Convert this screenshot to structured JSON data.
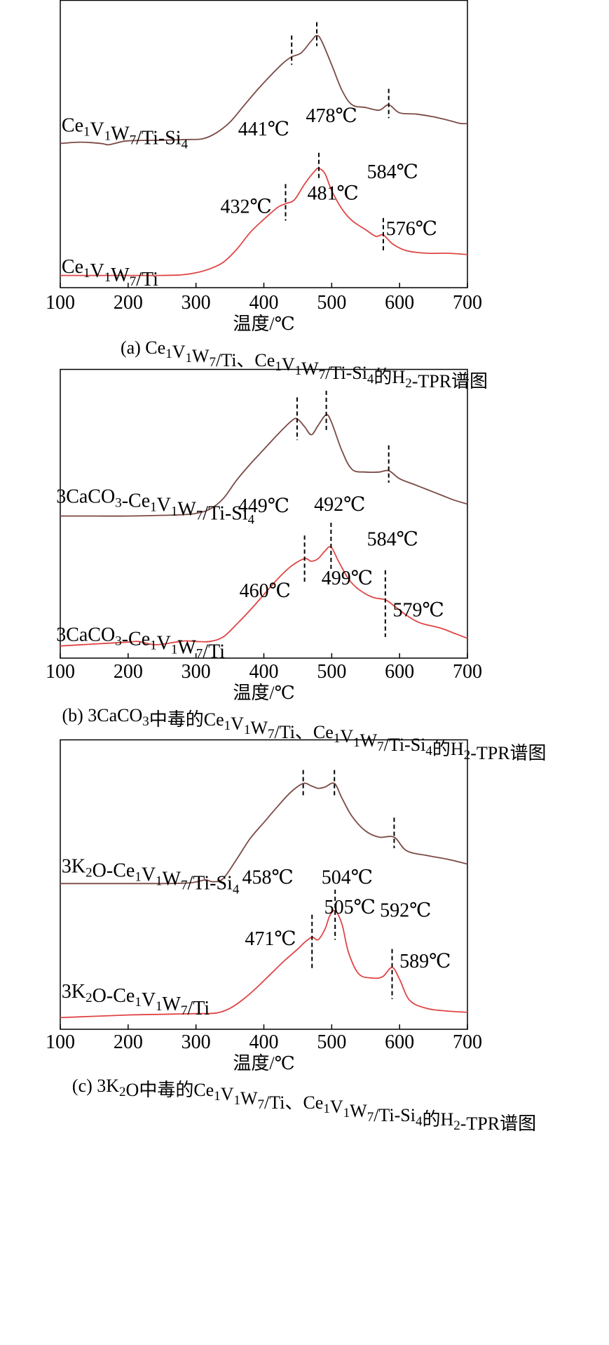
{
  "chart_data": [
    {
      "id": "a",
      "type": "line",
      "caption_parts": [
        {
          "t": "(a) Ce"
        },
        {
          "t": "1",
          "s": 1
        },
        {
          "t": "V"
        },
        {
          "t": "1",
          "s": 1
        },
        {
          "t": "W"
        },
        {
          "t": "7",
          "s": 1
        },
        {
          "t": "/Ti、Ce"
        },
        {
          "t": "1",
          "s": 1
        },
        {
          "t": "V"
        },
        {
          "t": "1",
          "s": 1
        },
        {
          "t": "W"
        },
        {
          "t": "7",
          "s": 1
        },
        {
          "t": "/Ti-Si"
        },
        {
          "t": "4",
          "s": 1
        },
        {
          "t": "的H"
        },
        {
          "t": "2",
          "s": 1
        },
        {
          "t": "-TPR谱图"
        }
      ],
      "xlabel": "温度/℃",
      "xlim": [
        100,
        700
      ],
      "xticks": [
        100,
        200,
        300,
        400,
        500,
        600,
        700
      ],
      "y_ticks_shown": false,
      "series": [
        {
          "label_parts": [
            {
              "t": "Ce"
            },
            {
              "t": "1",
              "s": 1
            },
            {
              "t": "V"
            },
            {
              "t": "1",
              "s": 1
            },
            {
              "t": "W"
            },
            {
              "t": "7",
              "s": 1
            },
            {
              "t": "/Ti-Si"
            },
            {
              "t": "4",
              "s": 1
            }
          ],
          "color": "#7a4a45",
          "x": [
            100,
            130,
            160,
            170,
            180,
            200,
            250,
            290,
            310,
            330,
            350,
            370,
            390,
            410,
            430,
            441,
            455,
            470,
            478,
            485,
            500,
            515,
            530,
            550,
            570,
            584,
            600,
            625,
            650,
            675,
            690,
            700
          ],
          "y": [
            0.05,
            0.06,
            0.05,
            0.04,
            0.05,
            0.07,
            0.075,
            0.08,
            0.085,
            0.13,
            0.21,
            0.33,
            0.45,
            0.56,
            0.66,
            0.7,
            0.73,
            0.82,
            0.86,
            0.82,
            0.64,
            0.45,
            0.34,
            0.32,
            0.3,
            0.34,
            0.28,
            0.27,
            0.25,
            0.22,
            0.2,
            0.2
          ]
        },
        {
          "label_parts": [
            {
              "t": "Ce"
            },
            {
              "t": "1",
              "s": 1
            },
            {
              "t": "V"
            },
            {
              "t": "1",
              "s": 1
            },
            {
              "t": "W"
            },
            {
              "t": "7",
              "s": 1
            },
            {
              "t": "/Ti"
            }
          ],
          "color": "#e04545",
          "x": [
            100,
            150,
            200,
            250,
            280,
            300,
            320,
            340,
            360,
            380,
            400,
            420,
            432,
            445,
            460,
            475,
            481,
            490,
            500,
            515,
            530,
            550,
            565,
            576,
            590,
            610,
            640,
            670,
            700
          ],
          "y": [
            0.04,
            0.04,
            0.04,
            0.04,
            0.045,
            0.06,
            0.09,
            0.14,
            0.24,
            0.37,
            0.47,
            0.56,
            0.59,
            0.62,
            0.74,
            0.84,
            0.86,
            0.82,
            0.69,
            0.55,
            0.46,
            0.39,
            0.34,
            0.35,
            0.28,
            0.23,
            0.21,
            0.21,
            0.2
          ]
        }
      ],
      "markers": [
        {
          "x": 441,
          "upper": 0.86,
          "lower": 0.64,
          "band": 0
        },
        {
          "x": 478,
          "upper": 0.96,
          "lower": 0.78,
          "band": 0
        },
        {
          "x": 584,
          "upper": 0.46,
          "lower": 0.24,
          "band": 0
        },
        {
          "x": 432,
          "upper": 0.74,
          "lower": 0.46,
          "band": 1
        },
        {
          "x": 481,
          "upper": 0.98,
          "lower": 0.78,
          "band": 1
        },
        {
          "x": 576,
          "upper": 0.48,
          "lower": 0.22,
          "band": 1
        }
      ],
      "annotations": [
        {
          "text": "441℃",
          "x": 362,
          "y": 0.11,
          "band": 0
        },
        {
          "text": "478℃",
          "x": 462,
          "y": 0.21,
          "band": 0
        },
        {
          "text": "584℃",
          "x": 552,
          "y": -0.21,
          "band": 0
        },
        {
          "text": "432℃",
          "x": 336,
          "y": 0.52,
          "band": 1
        },
        {
          "text": "481℃",
          "x": 464,
          "y": 0.62,
          "band": 1
        },
        {
          "text": "576℃",
          "x": 580,
          "y": 0.35,
          "band": 1
        }
      ],
      "series_label_pos": [
        {
          "x": 102,
          "y": 0.14,
          "band": 0
        },
        {
          "x": 102,
          "y": 0.06,
          "band": 1
        }
      ]
    },
    {
      "id": "b",
      "type": "line",
      "caption_parts": [
        {
          "t": "(b) 3CaCO"
        },
        {
          "t": "3",
          "s": 1
        },
        {
          "t": "中毒的Ce"
        },
        {
          "t": "1",
          "s": 1
        },
        {
          "t": "V"
        },
        {
          "t": "1",
          "s": 1
        },
        {
          "t": "W"
        },
        {
          "t": "7",
          "s": 1
        },
        {
          "t": "/Ti、Ce"
        },
        {
          "t": "1",
          "s": 1
        },
        {
          "t": "V"
        },
        {
          "t": "1",
          "s": 1
        },
        {
          "t": "W"
        },
        {
          "t": "7",
          "s": 1
        },
        {
          "t": "/Ti-Si"
        },
        {
          "t": "4",
          "s": 1
        },
        {
          "t": "的H"
        },
        {
          "t": "2",
          "s": 1
        },
        {
          "t": "-TPR谱图"
        }
      ],
      "xlabel": "温度/℃",
      "xlim": [
        100,
        700
      ],
      "xticks": [
        100,
        200,
        300,
        400,
        500,
        600,
        700
      ],
      "y_ticks_shown": false,
      "series": [
        {
          "label_parts": [
            {
              "t": "3CaCO"
            },
            {
              "t": "3",
              "s": 1
            },
            {
              "t": "-Ce"
            },
            {
              "t": "1",
              "s": 1
            },
            {
              "t": "V"
            },
            {
              "t": "1",
              "s": 1
            },
            {
              "t": "W"
            },
            {
              "t": "7",
              "s": 1
            },
            {
              "t": "/Ti-Si"
            },
            {
              "t": "4",
              "s": 1
            }
          ],
          "color": "#7a4a45",
          "x": [
            100,
            150,
            200,
            250,
            280,
            300,
            320,
            340,
            360,
            380,
            400,
            420,
            440,
            449,
            460,
            470,
            480,
            492,
            500,
            515,
            530,
            550,
            570,
            584,
            600,
            620,
            640,
            660,
            680,
            700
          ],
          "y": [
            0.05,
            0.05,
            0.05,
            0.055,
            0.06,
            0.07,
            0.1,
            0.18,
            0.32,
            0.44,
            0.55,
            0.66,
            0.76,
            0.78,
            0.72,
            0.66,
            0.73,
            0.81,
            0.75,
            0.54,
            0.4,
            0.38,
            0.38,
            0.39,
            0.33,
            0.29,
            0.25,
            0.21,
            0.17,
            0.14
          ]
        },
        {
          "label_parts": [
            {
              "t": "3CaCO"
            },
            {
              "t": "3",
              "s": 1
            },
            {
              "t": "-Ce"
            },
            {
              "t": "1",
              "s": 1
            },
            {
              "t": "V"
            },
            {
              "t": "1",
              "s": 1
            },
            {
              "t": "W"
            },
            {
              "t": "7",
              "s": 1
            },
            {
              "t": "/Ti"
            }
          ],
          "color": "#e04545",
          "x": [
            100,
            150,
            200,
            215,
            240,
            270,
            285,
            300,
            320,
            340,
            360,
            380,
            400,
            420,
            440,
            460,
            470,
            480,
            490,
            499,
            510,
            525,
            540,
            560,
            579,
            590,
            610,
            630,
            660,
            680,
            700
          ],
          "y": [
            0.04,
            0.055,
            0.07,
            0.075,
            0.05,
            0.07,
            0.08,
            0.075,
            0.075,
            0.11,
            0.21,
            0.32,
            0.44,
            0.56,
            0.66,
            0.72,
            0.7,
            0.72,
            0.78,
            0.81,
            0.7,
            0.56,
            0.48,
            0.42,
            0.4,
            0.36,
            0.28,
            0.22,
            0.18,
            0.14,
            0.1
          ]
        }
      ],
      "markers": [
        {
          "x": 449,
          "upper": 0.94,
          "lower": 0.62,
          "band": 0
        },
        {
          "x": 492,
          "upper": 0.99,
          "lower": 0.69,
          "band": 0
        },
        {
          "x": 584,
          "upper": 0.58,
          "lower": 0.3,
          "band": 0
        },
        {
          "x": 460,
          "upper": 0.9,
          "lower": 0.54,
          "band": 1
        },
        {
          "x": 499,
          "upper": 1.0,
          "lower": 0.64,
          "band": 1
        },
        {
          "x": 579,
          "upper": 0.63,
          "lower": 0.11,
          "band": 1
        }
      ],
      "annotations": [
        {
          "text": "449℃",
          "x": 362,
          "y": 0.08,
          "band": 0
        },
        {
          "text": "492℃",
          "x": 474,
          "y": 0.09,
          "band": 0
        },
        {
          "text": "584℃",
          "x": 552,
          "y": -0.17,
          "band": 0
        },
        {
          "text": "460℃",
          "x": 364,
          "y": 0.42,
          "band": 1
        },
        {
          "text": "499℃",
          "x": 485,
          "y": 0.52,
          "band": 1
        },
        {
          "text": "579℃",
          "x": 590,
          "y": 0.27,
          "band": 1
        }
      ],
      "series_label_pos": [
        {
          "x": 94,
          "y": 0.15,
          "band": 0
        },
        {
          "x": 94,
          "y": 0.08,
          "band": 1
        }
      ]
    },
    {
      "id": "c",
      "type": "line",
      "caption_parts": [
        {
          "t": "(c) 3K"
        },
        {
          "t": "2",
          "s": 1
        },
        {
          "t": "O中毒的Ce"
        },
        {
          "t": "1",
          "s": 1
        },
        {
          "t": "V"
        },
        {
          "t": "1",
          "s": 1
        },
        {
          "t": "W"
        },
        {
          "t": "7",
          "s": 1
        },
        {
          "t": "/Ti、Ce"
        },
        {
          "t": "1",
          "s": 1
        },
        {
          "t": "V"
        },
        {
          "t": "1",
          "s": 1
        },
        {
          "t": "W"
        },
        {
          "t": "7",
          "s": 1
        },
        {
          "t": "/Ti-Si"
        },
        {
          "t": "4",
          "s": 1
        },
        {
          "t": "的H"
        },
        {
          "t": "2",
          "s": 1
        },
        {
          "t": "-TPR谱图"
        }
      ],
      "xlabel": "温度/℃",
      "xlim": [
        100,
        700
      ],
      "xticks": [
        100,
        200,
        300,
        400,
        500,
        600,
        700
      ],
      "y_ticks_shown": false,
      "series": [
        {
          "label_parts": [
            {
              "t": "3K"
            },
            {
              "t": "2",
              "s": 1
            },
            {
              "t": "O-Ce"
            },
            {
              "t": "1",
              "s": 1
            },
            {
              "t": "V"
            },
            {
              "t": "1",
              "s": 1
            },
            {
              "t": "W"
            },
            {
              "t": "7",
              "s": 1
            },
            {
              "t": "/Ti-Si"
            },
            {
              "t": "4",
              "s": 1
            }
          ],
          "color": "#7a4a45",
          "x": [
            100,
            150,
            200,
            250,
            290,
            305,
            315,
            325,
            340,
            360,
            380,
            400,
            420,
            440,
            458,
            470,
            480,
            490,
            504,
            515,
            530,
            550,
            570,
            592,
            610,
            640,
            670,
            700
          ],
          "y": [
            0.05,
            0.05,
            0.05,
            0.05,
            0.055,
            0.07,
            0.08,
            0.065,
            0.09,
            0.25,
            0.42,
            0.55,
            0.68,
            0.8,
            0.87,
            0.85,
            0.83,
            0.84,
            0.87,
            0.75,
            0.6,
            0.48,
            0.43,
            0.43,
            0.32,
            0.28,
            0.25,
            0.21
          ]
        },
        {
          "label_parts": [
            {
              "t": "3K"
            },
            {
              "t": "2",
              "s": 1
            },
            {
              "t": "O-Ce"
            },
            {
              "t": "1",
              "s": 1
            },
            {
              "t": "V"
            },
            {
              "t": "1",
              "s": 1
            },
            {
              "t": "W"
            },
            {
              "t": "7",
              "s": 1
            },
            {
              "t": "/Ti"
            }
          ],
          "color": "#e04545",
          "x": [
            100,
            150,
            200,
            250,
            300,
            330,
            350,
            370,
            390,
            410,
            430,
            450,
            460,
            471,
            480,
            490,
            497,
            505,
            515,
            525,
            540,
            560,
            575,
            589,
            600,
            615,
            640,
            670,
            700
          ],
          "y": [
            0.03,
            0.04,
            0.05,
            0.055,
            0.06,
            0.065,
            0.1,
            0.17,
            0.26,
            0.36,
            0.46,
            0.55,
            0.6,
            0.64,
            0.62,
            0.7,
            0.8,
            0.84,
            0.74,
            0.52,
            0.36,
            0.33,
            0.34,
            0.41,
            0.32,
            0.16,
            0.1,
            0.08,
            0.07
          ]
        }
      ],
      "markers": [
        {
          "x": 458,
          "upper": 0.98,
          "lower": 0.76,
          "band": 0
        },
        {
          "x": 504,
          "upper": 0.98,
          "lower": 0.76,
          "band": 0
        },
        {
          "x": 592,
          "upper": 0.59,
          "lower": 0.34,
          "band": 0
        },
        {
          "x": 471,
          "upper": 0.81,
          "lower": 0.4,
          "band": 1
        },
        {
          "x": 505,
          "upper": 1.0,
          "lower": 0.62,
          "band": 1
        },
        {
          "x": 589,
          "upper": 0.55,
          "lower": 0.17,
          "band": 1
        }
      ],
      "annotations": [
        {
          "text": "458℃",
          "x": 368,
          "y": 0.05,
          "band": 0
        },
        {
          "text": "504℃",
          "x": 485,
          "y": 0.05,
          "band": 0
        },
        {
          "text": "592℃",
          "x": 571,
          "y": -0.22,
          "band": 0
        },
        {
          "text": "471℃",
          "x": 372,
          "y": 0.58,
          "band": 1
        },
        {
          "text": "505℃",
          "x": 489,
          "y": 0.82,
          "band": 1
        },
        {
          "text": "589℃",
          "x": 600,
          "y": 0.41,
          "band": 1
        }
      ],
      "series_label_pos": [
        {
          "x": 102,
          "y": 0.14,
          "band": 0
        },
        {
          "x": 102,
          "y": 0.18,
          "band": 1
        }
      ]
    }
  ]
}
